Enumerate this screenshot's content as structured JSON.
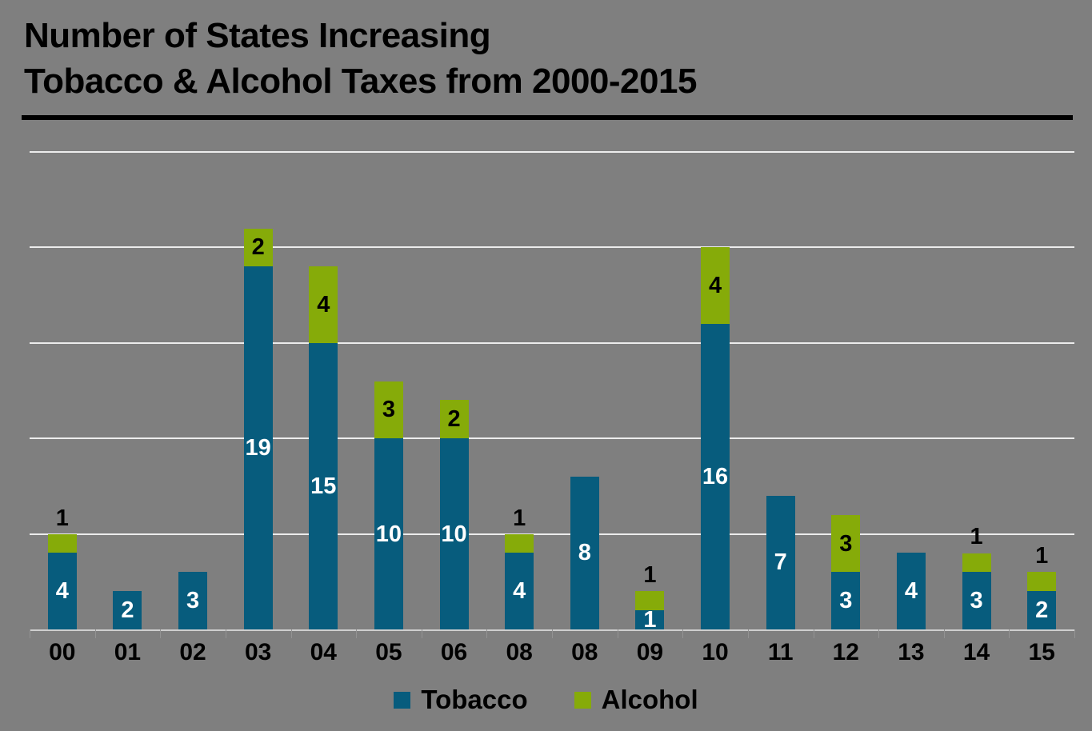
{
  "title": {
    "line1": "Number of States Increasing",
    "line2": "Tobacco & Alcohol Taxes from 2000-2015"
  },
  "colors": {
    "background": "#7F7F7F",
    "tobacco": "#075C7D",
    "alcohol": "#86AB09",
    "gridline": "#ECECEC",
    "bar_label_tobacco": "#FFFFFF",
    "bar_label_alcohol": "#000000",
    "text": "#000000"
  },
  "legend": {
    "items": [
      {
        "label": "Tobacco",
        "color_key": "tobacco"
      },
      {
        "label": "Alcohol",
        "color_key": "alcohol"
      }
    ]
  },
  "chart_data": {
    "type": "bar",
    "stacked": true,
    "title": "Number of States Increasing Tobacco & Alcohol Taxes from 2000-2015",
    "categories": [
      "00",
      "01",
      "02",
      "03",
      "04",
      "05",
      "06",
      "08",
      "08",
      "09",
      "10",
      "11",
      "12",
      "13",
      "14",
      "15"
    ],
    "series": [
      {
        "name": "Tobacco",
        "values": [
          4,
          2,
          3,
          19,
          15,
          10,
          10,
          4,
          8,
          1,
          16,
          7,
          3,
          4,
          3,
          2
        ]
      },
      {
        "name": "Alcohol",
        "values": [
          1,
          0,
          0,
          2,
          4,
          3,
          2,
          1,
          0,
          1,
          4,
          0,
          3,
          0,
          1,
          1
        ]
      }
    ],
    "value_labels": "shown on every segment; alcohol values of 1 are printed above the bar",
    "xlabel": "",
    "ylabel": "",
    "ylim": [
      0,
      26.3
    ],
    "gridlines_at": [
      5,
      10,
      15,
      20,
      25
    ],
    "legend_position": "bottom"
  }
}
